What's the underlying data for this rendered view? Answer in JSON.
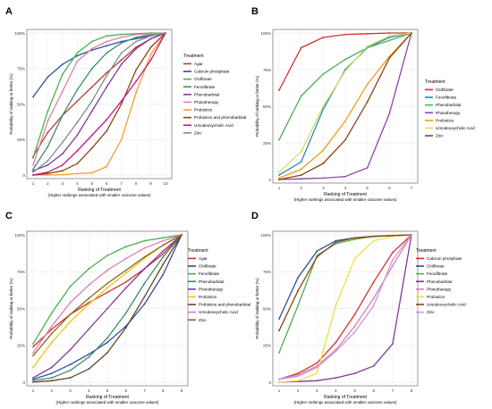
{
  "chart_data": [
    {
      "type": "line",
      "panel_label": "A",
      "xlabel": "Ranking of Treatment",
      "xsublabel": "(Higher rankings associated with smaller outcome values)",
      "ylabel": "Probability of ranking or better (%)",
      "x": [
        1,
        2,
        3,
        4,
        5,
        6,
        7,
        8,
        9,
        10
      ],
      "ylim": [
        0,
        100
      ],
      "yticks": [
        "0",
        "25%",
        "50%",
        "75%",
        "100%"
      ],
      "legend_title": "Treatment",
      "series": [
        {
          "name": "Agar",
          "color": "#c0392b",
          "values": [
            13,
            30,
            42,
            52,
            62,
            72,
            81,
            90,
            96,
            100
          ]
        },
        {
          "name": "Calcium phosphate",
          "color": "#2c4f9e",
          "values": [
            55,
            69,
            78,
            84,
            88,
            91,
            94,
            96,
            98,
            100
          ]
        },
        {
          "name": "Clofibrate",
          "color": "#4caf50",
          "values": [
            12,
            45,
            71,
            86,
            94,
            98,
            99,
            99.5,
            100,
            100
          ]
        },
        {
          "name": "Fenofibrate",
          "color": "#3c8e6a",
          "values": [
            4,
            20,
            42,
            60,
            75,
            86,
            93,
            97,
            99,
            100
          ]
        },
        {
          "name": "Phenobarbital",
          "color": "#7d3c98",
          "values": [
            3,
            7,
            15,
            28,
            45,
            62,
            78,
            89,
            96,
            100
          ]
        },
        {
          "name": "Phototherapy",
          "color": "#e17fb0",
          "values": [
            7,
            38,
            59,
            80,
            89,
            94,
            97,
            99,
            99.5,
            100
          ]
        },
        {
          "name": "Probiotics",
          "color": "#f0a030",
          "values": [
            0,
            0,
            0.2,
            1,
            1.5,
            6,
            25,
            58,
            85,
            100
          ]
        },
        {
          "name": "Probiotics and phenobarbital",
          "color": "#8b4513",
          "values": [
            0,
            1,
            3,
            8,
            19,
            31,
            50,
            74,
            90,
            100
          ]
        },
        {
          "name": "Ursodeoxycholic Acid",
          "color": "#c71585",
          "values": [
            0,
            2,
            7,
            17,
            28,
            39,
            52,
            66,
            81,
            100
          ]
        },
        {
          "name": "Zinc",
          "color": "#7f8c8d",
          "values": [
            2,
            10,
            23,
            37,
            52,
            70,
            86,
            94,
            98,
            100
          ]
        }
      ]
    },
    {
      "type": "line",
      "panel_label": "B",
      "xlabel": "Ranking of Treatment",
      "xsublabel": "(Higher rankings associated with smaller outcome values)",
      "ylabel": "Probability of ranking or better (%)",
      "x": [
        1,
        2,
        3,
        4,
        5,
        6,
        7
      ],
      "ylim": [
        0,
        100
      ],
      "yticks": [
        "0",
        "25%",
        "50%",
        "75%",
        "100%"
      ],
      "legend_title": "Treatment",
      "series": [
        {
          "name": "Clofibrate",
          "color": "#d32f2f",
          "values": [
            61,
            90,
            97,
            99,
            99.5,
            100,
            100
          ]
        },
        {
          "name": "Fenofibrate",
          "color": "#2e86c1",
          "values": [
            3,
            12,
            48,
            75,
            90,
            97,
            100
          ]
        },
        {
          "name": "Phenobarbital",
          "color": "#4caf50",
          "values": [
            27,
            57,
            72,
            82,
            90,
            95,
            100
          ]
        },
        {
          "name": "Phototherapy",
          "color": "#8e44ad",
          "values": [
            0,
            0.5,
            1,
            2,
            8,
            45,
            100
          ]
        },
        {
          "name": "Probiotics",
          "color": "#f39c12",
          "values": [
            1,
            7,
            20,
            40,
            65,
            84,
            100
          ]
        },
        {
          "name": "Ursodeoxycholic Acid",
          "color": "#d4e157",
          "values": [
            5,
            19,
            50,
            74,
            91,
            98,
            100
          ]
        },
        {
          "name": "Zinc",
          "color": "#8b4513",
          "values": [
            0,
            3,
            11,
            27,
            53,
            83,
            100
          ]
        }
      ]
    },
    {
      "type": "line",
      "panel_label": "C",
      "xlabel": "Ranking of Treatment",
      "xsublabel": "(Higher rankings associated with smaller outcome values)",
      "ylabel": "Probability of ranking or better (%)",
      "x": [
        1,
        2,
        3,
        4,
        5,
        6,
        7,
        8,
        9
      ],
      "ylim": [
        0,
        100
      ],
      "yticks": [
        "0",
        "25%",
        "50%",
        "75%",
        "100%"
      ],
      "legend_title": "Treatment",
      "series": [
        {
          "name": "Agar",
          "color": "#d32f2f",
          "values": [
            24,
            36,
            46,
            54,
            61,
            68,
            77,
            87,
            100
          ]
        },
        {
          "name": "Clofibrate",
          "color": "#2c4f9e",
          "values": [
            2,
            6,
            12,
            19,
            27,
            38,
            53,
            73,
            100
          ]
        },
        {
          "name": "Fenofibrate",
          "color": "#4caf50",
          "values": [
            26,
            47,
            65,
            77,
            86,
            92,
            96,
            98,
            100
          ]
        },
        {
          "name": "Phenobarbital",
          "color": "#3c8e6a",
          "values": [
            1,
            3,
            8,
            17,
            30,
            47,
            67,
            85,
            100
          ]
        },
        {
          "name": "Phototherapy",
          "color": "#7d3c98",
          "values": [
            3,
            10,
            22,
            36,
            50,
            64,
            77,
            89,
            100
          ]
        },
        {
          "name": "Probiotics",
          "color": "#f0c419",
          "values": [
            10,
            27,
            41,
            53,
            64,
            74,
            84,
            93,
            100
          ]
        },
        {
          "name": "Probiotics and phenobarbital",
          "color": "#6b4226",
          "values": [
            0,
            1,
            3,
            9,
            20,
            37,
            58,
            80,
            100
          ]
        },
        {
          "name": "Ursodeoxycholic Acid",
          "color": "#e17fb0",
          "values": [
            20,
            38,
            54,
            66,
            76,
            84,
            91,
            96,
            100
          ]
        },
        {
          "name": "Zinc",
          "color": "#8b6914",
          "values": [
            18,
            33,
            46,
            57,
            67,
            76,
            85,
            93,
            100
          ]
        }
      ]
    },
    {
      "type": "line",
      "panel_label": "D",
      "xlabel": "Ranking of Treatment",
      "xsublabel": "(Higher rankings associated with smaller outcome values)",
      "ylabel": "Probability of ranking or better (%)",
      "x": [
        1,
        2,
        3,
        4,
        5,
        6,
        7,
        8
      ],
      "ylim": [
        0,
        100
      ],
      "yticks": [
        "0",
        "25%",
        "50%",
        "75%",
        "100%"
      ],
      "legend_title": "Treatment",
      "series": [
        {
          "name": "Calcium phosphate",
          "color": "#d32f2f",
          "values": [
            2,
            6,
            13,
            27,
            46,
            68,
            88,
            100
          ]
        },
        {
          "name": "Clofibrate",
          "color": "#2c4f9e",
          "values": [
            43,
            71,
            89,
            96,
            98,
            99,
            99.5,
            100
          ]
        },
        {
          "name": "Fenofibrate",
          "color": "#4caf50",
          "values": [
            20,
            52,
            86,
            94,
            97,
            99,
            99.5,
            100
          ]
        },
        {
          "name": "Phenobarbital",
          "color": "#7d3c98",
          "values": [
            0,
            0.5,
            1,
            3,
            6,
            11,
            26,
            100
          ]
        },
        {
          "name": "Phototherapy",
          "color": "#e17fb0",
          "values": [
            2,
            5,
            11,
            22,
            38,
            57,
            79,
            100
          ]
        },
        {
          "name": "Probiotics",
          "color": "#f0e040",
          "values": [
            0,
            1,
            6,
            52,
            84,
            96,
            99,
            100
          ]
        },
        {
          "name": "Ursodeoxycholic Acid",
          "color": "#8b4513",
          "values": [
            35,
            62,
            85,
            95,
            98,
            99,
            99.5,
            100
          ]
        },
        {
          "name": "Zinc",
          "color": "#c39bd3",
          "values": [
            2,
            4,
            10,
            21,
            34,
            52,
            83,
            100
          ]
        }
      ]
    }
  ]
}
